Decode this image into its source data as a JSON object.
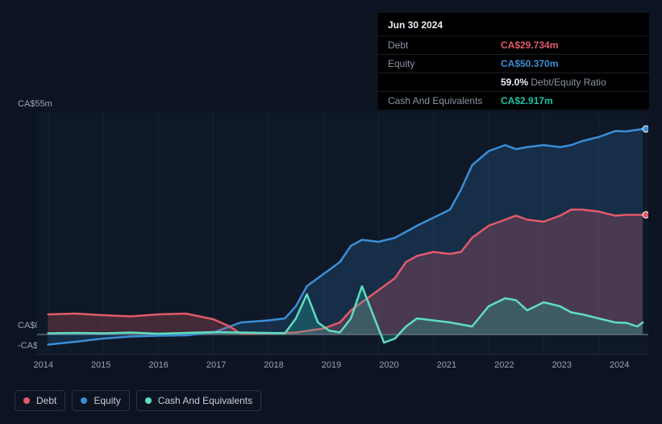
{
  "tooltip": {
    "date": "Jun 30 2024",
    "rows": {
      "debt": {
        "label": "Debt",
        "value": "CA$29.734m",
        "color": "#e25a6a"
      },
      "equity": {
        "label": "Equity",
        "value": "CA$50.370m",
        "color": "#3a8ed6"
      },
      "ratio": {
        "value": "59.0%",
        "label": "Debt/Equity Ratio"
      },
      "cash": {
        "label": "Cash And Equivalents",
        "value": "CA$2.917m",
        "color": "#1fc2a3"
      }
    }
  },
  "chart": {
    "type": "area",
    "background_color": "#0d1421",
    "plot_background_gradient": [
      "#0f1826",
      "#0d1421"
    ],
    "xlim": [
      2013.8,
      2024.9
    ],
    "ylim": [
      -5,
      55
    ],
    "ytick_top": "CA$55m",
    "ytick_zero": "CA$0",
    "ytick_neg": "-CA$5m",
    "xticks": [
      "2014",
      "2015",
      "2016",
      "2017",
      "2018",
      "2019",
      "2020",
      "2021",
      "2022",
      "2023",
      "2024"
    ],
    "zero_line_color": "#5a6576",
    "neg_line_color": "#3a4254",
    "grid_color": "#1a2332",
    "line_width": 2.5,
    "fill_opacity": 0.25,
    "series": {
      "debt": {
        "name": "Debt",
        "color": "#e25a6a",
        "fill": "#e25a6a",
        "points": [
          [
            2014.0,
            5.0
          ],
          [
            2014.5,
            5.2
          ],
          [
            2015.0,
            4.8
          ],
          [
            2015.5,
            4.5
          ],
          [
            2016.0,
            5.0
          ],
          [
            2016.5,
            5.2
          ],
          [
            2017.0,
            3.8
          ],
          [
            2017.3,
            2.0
          ],
          [
            2017.5,
            0.2
          ],
          [
            2018.0,
            0.3
          ],
          [
            2018.5,
            0.5
          ],
          [
            2019.0,
            1.5
          ],
          [
            2019.3,
            3.0
          ],
          [
            2019.5,
            6.0
          ],
          [
            2019.7,
            8.0
          ],
          [
            2020.0,
            11.0
          ],
          [
            2020.3,
            14.0
          ],
          [
            2020.5,
            18.0
          ],
          [
            2020.7,
            19.5
          ],
          [
            2021.0,
            20.5
          ],
          [
            2021.3,
            20.0
          ],
          [
            2021.5,
            20.5
          ],
          [
            2021.7,
            24.0
          ],
          [
            2022.0,
            27.0
          ],
          [
            2022.3,
            28.5
          ],
          [
            2022.5,
            29.5
          ],
          [
            2022.7,
            28.5
          ],
          [
            2023.0,
            28.0
          ],
          [
            2023.3,
            29.5
          ],
          [
            2023.5,
            31.0
          ],
          [
            2023.7,
            31.0
          ],
          [
            2024.0,
            30.5
          ],
          [
            2024.3,
            29.5
          ],
          [
            2024.5,
            29.7
          ],
          [
            2024.8,
            29.7
          ]
        ]
      },
      "equity": {
        "name": "Equity",
        "color": "#3a8ed6",
        "fill": "#2d6fb0",
        "points": [
          [
            2014.0,
            -2.5
          ],
          [
            2014.5,
            -1.8
          ],
          [
            2015.0,
            -1.0
          ],
          [
            2015.5,
            -0.5
          ],
          [
            2016.0,
            -0.3
          ],
          [
            2016.5,
            -0.2
          ],
          [
            2017.0,
            0.5
          ],
          [
            2017.3,
            2.0
          ],
          [
            2017.5,
            3.0
          ],
          [
            2018.0,
            3.5
          ],
          [
            2018.3,
            4.0
          ],
          [
            2018.5,
            7.0
          ],
          [
            2018.7,
            12.0
          ],
          [
            2019.0,
            15.0
          ],
          [
            2019.3,
            18.0
          ],
          [
            2019.5,
            22.0
          ],
          [
            2019.7,
            23.5
          ],
          [
            2020.0,
            23.0
          ],
          [
            2020.3,
            24.0
          ],
          [
            2020.5,
            25.5
          ],
          [
            2020.7,
            27.0
          ],
          [
            2021.0,
            29.0
          ],
          [
            2021.3,
            31.0
          ],
          [
            2021.5,
            36.0
          ],
          [
            2021.7,
            42.0
          ],
          [
            2022.0,
            45.5
          ],
          [
            2022.3,
            47.0
          ],
          [
            2022.5,
            46.0
          ],
          [
            2022.7,
            46.5
          ],
          [
            2023.0,
            47.0
          ],
          [
            2023.3,
            46.5
          ],
          [
            2023.5,
            47.0
          ],
          [
            2023.7,
            48.0
          ],
          [
            2024.0,
            49.0
          ],
          [
            2024.3,
            50.5
          ],
          [
            2024.5,
            50.4
          ],
          [
            2024.8,
            51.0
          ]
        ]
      },
      "cash": {
        "name": "Cash And Equivalents",
        "color": "#5fddc0",
        "fill": "#1fc2a3",
        "points": [
          [
            2014.0,
            0.3
          ],
          [
            2014.5,
            0.4
          ],
          [
            2015.0,
            0.3
          ],
          [
            2015.5,
            0.5
          ],
          [
            2016.0,
            0.2
          ],
          [
            2016.5,
            0.4
          ],
          [
            2017.0,
            0.6
          ],
          [
            2017.5,
            0.5
          ],
          [
            2018.0,
            0.4
          ],
          [
            2018.3,
            0.3
          ],
          [
            2018.5,
            4.0
          ],
          [
            2018.7,
            10.0
          ],
          [
            2018.9,
            3.0
          ],
          [
            2019.1,
            1.0
          ],
          [
            2019.3,
            0.5
          ],
          [
            2019.5,
            4.0
          ],
          [
            2019.7,
            12.0
          ],
          [
            2019.9,
            5.0
          ],
          [
            2020.1,
            -2.0
          ],
          [
            2020.3,
            -1.0
          ],
          [
            2020.5,
            2.0
          ],
          [
            2020.7,
            4.0
          ],
          [
            2021.0,
            3.5
          ],
          [
            2021.3,
            3.0
          ],
          [
            2021.5,
            2.5
          ],
          [
            2021.7,
            2.0
          ],
          [
            2022.0,
            7.0
          ],
          [
            2022.3,
            9.0
          ],
          [
            2022.5,
            8.5
          ],
          [
            2022.7,
            6.0
          ],
          [
            2023.0,
            8.0
          ],
          [
            2023.3,
            7.0
          ],
          [
            2023.5,
            5.5
          ],
          [
            2023.7,
            5.0
          ],
          [
            2024.0,
            4.0
          ],
          [
            2024.3,
            3.0
          ],
          [
            2024.5,
            2.9
          ],
          [
            2024.7,
            2.0
          ],
          [
            2024.8,
            3.0
          ]
        ]
      }
    },
    "end_markers": {
      "equity": {
        "color": "#3a8ed6",
        "y": 51.0
      },
      "debt": {
        "color": "#e25a6a",
        "y": 29.7
      }
    }
  },
  "legend": {
    "debt": {
      "label": "Debt",
      "color": "#e25a6a"
    },
    "equity": {
      "label": "Equity",
      "color": "#3a8ed6"
    },
    "cash": {
      "label": "Cash And Equivalents",
      "color": "#5fddc0"
    }
  }
}
